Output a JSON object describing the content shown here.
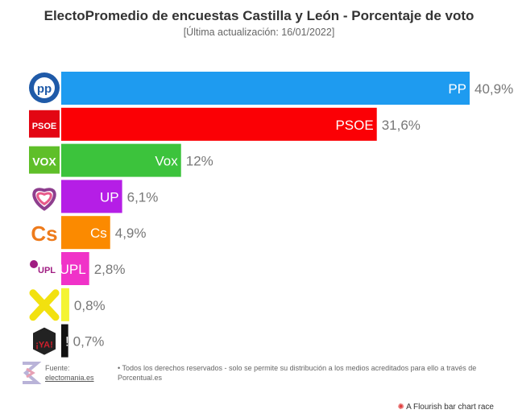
{
  "title": "ElectoPromedio de encuestas Castilla y León - Porcentaje de voto",
  "subtitle": "[Última actualización: 16/01/2022]",
  "chart_data": {
    "type": "bar",
    "orientation": "horizontal",
    "title": "ElectoPromedio de encuestas Castilla y León - Porcentaje de voto",
    "categories": [
      "PP",
      "PSOE",
      "Vox",
      "UP",
      "Cs",
      "UPL",
      "XAV",
      "Soria ¡Ya!"
    ],
    "bar_labels": [
      "PP",
      "PSOE",
      "Vox",
      "UP",
      "Cs",
      "UPL",
      "",
      "!"
    ],
    "values": [
      40.9,
      31.6,
      12,
      6.1,
      4.9,
      2.8,
      0.8,
      0.7
    ],
    "value_labels": [
      "40,9%",
      "31,6%",
      "12%",
      "6,1%",
      "4,9%",
      "2,8%",
      "0,8%",
      "0,7%"
    ],
    "colors": [
      "#1e9bf0",
      "#fb0005",
      "#3cc33c",
      "#b51ee6",
      "#fb8a00",
      "#f032c8",
      "#f4f433",
      "#111111"
    ],
    "logos": [
      {
        "icon": "pp-logo-icon",
        "text": "pp",
        "color": "#1f5aa8"
      },
      {
        "icon": "psoe-logo-icon",
        "text": "PSOE",
        "color": "#e30613"
      },
      {
        "icon": "vox-logo-icon",
        "text": "VOX",
        "color": "#5fbf29"
      },
      {
        "icon": "up-logo-icon",
        "text": "",
        "color": "#8e3e8e"
      },
      {
        "icon": "cs-logo-icon",
        "text": "Cs",
        "color": "#ee7b1c"
      },
      {
        "icon": "upl-logo-icon",
        "text": "UPL",
        "color": "#a01c82"
      },
      {
        "icon": "xav-logo-icon",
        "text": "",
        "color": "#f2e10f"
      },
      {
        "icon": "soria-ya-logo-icon",
        "text": "¡YA!",
        "color": "#cf1f2c"
      }
    ],
    "xlim": [
      0,
      40.9
    ],
    "grid": false,
    "legend": "none"
  },
  "footer": {
    "source_label": "Fuente:",
    "source_link": "electomania.es",
    "note_line1": "• Todos los derechos reservados - solo se permite su distribución a los medios acreditados para ello a través de",
    "note_line2": "Porcentual.es",
    "credit": "A Flourish bar chart race"
  }
}
